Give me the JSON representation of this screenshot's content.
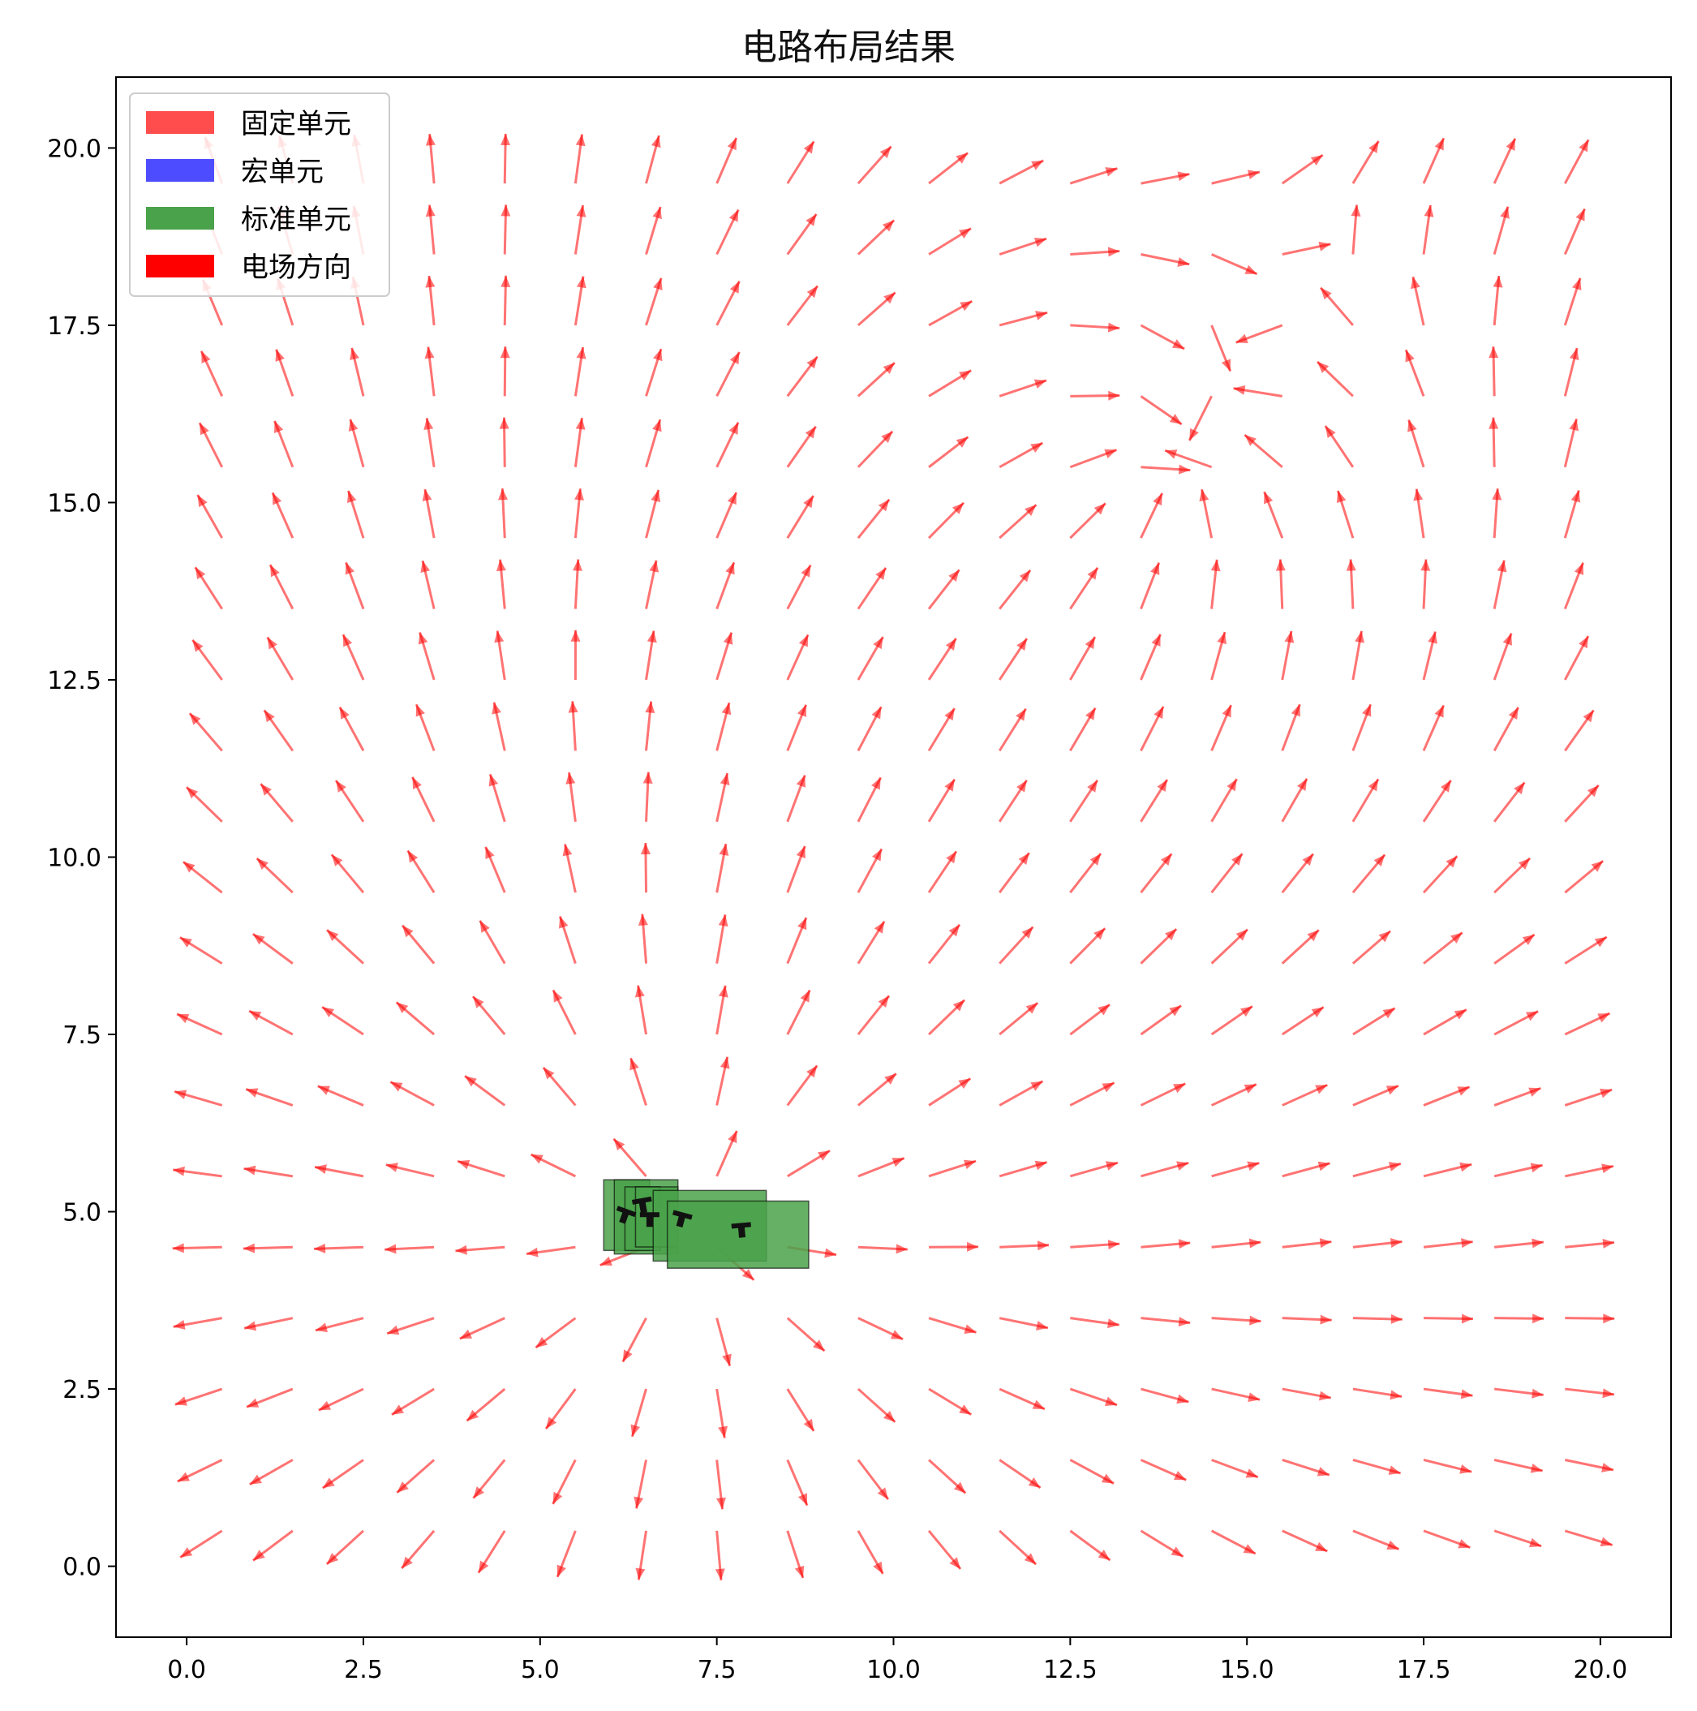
{
  "chart_data": {
    "type": "quiver",
    "title": "电路布局结果",
    "xlabel": "",
    "ylabel": "",
    "xlim": [
      -1.0,
      21.0
    ],
    "ylim": [
      -1.0,
      21.0
    ],
    "xticks": [
      0.0,
      2.5,
      5.0,
      7.5,
      10.0,
      12.5,
      15.0,
      17.5,
      20.0
    ],
    "yticks": [
      0.0,
      2.5,
      5.0,
      7.5,
      10.0,
      12.5,
      15.0,
      17.5,
      20.0
    ],
    "xtick_labels": [
      "0.0",
      "2.5",
      "5.0",
      "7.5",
      "10.0",
      "12.5",
      "15.0",
      "17.5",
      "20.0"
    ],
    "ytick_labels": [
      "0.0",
      "2.5",
      "5.0",
      "7.5",
      "10.0",
      "12.5",
      "15.0",
      "17.5",
      "20.0"
    ],
    "grid": false,
    "legend": {
      "placement": "top-left",
      "entries": [
        {
          "label": "固定单元",
          "color": "#ff4d4d"
        },
        {
          "label": "宏单元",
          "color": "#4d4dff"
        },
        {
          "label": "标准单元",
          "color": "#4aa24a"
        },
        {
          "label": "电场方向",
          "color": "#ff0000"
        }
      ]
    },
    "field": {
      "name": "电场方向",
      "color": "#ff0000",
      "grid_x": [
        0.5,
        1.5,
        2.5,
        3.5,
        4.5,
        5.5,
        6.5,
        7.5,
        8.5,
        9.5,
        10.5,
        11.5,
        12.5,
        13.5,
        14.5,
        15.5,
        16.5,
        17.5,
        18.5,
        19.5
      ],
      "grid_y": [
        0.5,
        1.5,
        2.5,
        3.5,
        4.5,
        5.5,
        6.5,
        7.5,
        8.5,
        9.5,
        10.5,
        11.5,
        12.5,
        13.5,
        14.5,
        15.5,
        16.5,
        17.5,
        18.5,
        19.5
      ],
      "source_center": [
        7.2,
        4.8
      ],
      "source_radius": 8.5,
      "sink_center": [
        13.8,
        15.3
      ],
      "sink_radius": 4.5,
      "vector_length": 0.7
    },
    "standard_cells": {
      "name": "标准单元",
      "color": "#4aa24a",
      "rects": [
        {
          "x": 5.9,
          "y": 4.45,
          "w": 0.65,
          "h": 1.0
        },
        {
          "x": 6.05,
          "y": 4.4,
          "w": 0.9,
          "h": 1.05
        },
        {
          "x": 6.2,
          "y": 4.45,
          "w": 0.5,
          "h": 0.9
        },
        {
          "x": 6.35,
          "y": 4.5,
          "w": 0.6,
          "h": 0.85
        },
        {
          "x": 6.6,
          "y": 4.3,
          "w": 1.6,
          "h": 1.0
        },
        {
          "x": 6.8,
          "y": 4.2,
          "w": 2.0,
          "h": 0.95
        }
      ],
      "markers": [
        {
          "x": 6.2,
          "y": 4.95,
          "angle": 20
        },
        {
          "x": 6.45,
          "y": 5.1,
          "angle": -10
        },
        {
          "x": 6.55,
          "y": 4.9,
          "angle": 0
        },
        {
          "x": 7.0,
          "y": 4.9,
          "angle": 15
        },
        {
          "x": 7.85,
          "y": 4.75,
          "angle": -5
        }
      ]
    }
  }
}
